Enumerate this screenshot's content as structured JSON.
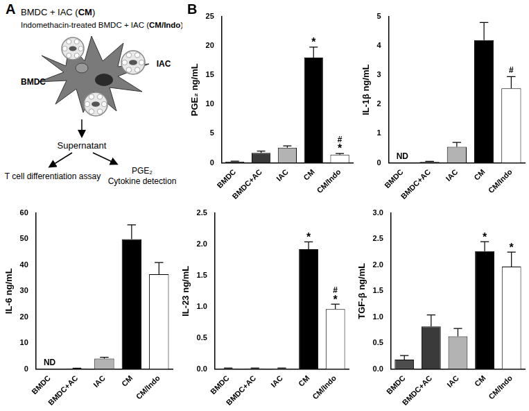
{
  "panel_labels": [
    "A",
    "B"
  ],
  "diagram": {
    "header_lines": [
      [
        {
          "text": "BMDC + IAC ("
        },
        {
          "text": "CM",
          "bold": true
        },
        {
          "text": ")"
        }
      ],
      [
        {
          "text": "Indomethacin-treated BMDC + IAC ("
        },
        {
          "text": "CM/Indo",
          "bold": true
        },
        {
          "text": ")"
        }
      ]
    ],
    "cell_label": "BMDC",
    "particle_label": "IAC",
    "product": "Supernatant",
    "left_output": [
      "T cell differentiation assay"
    ],
    "right_output": [
      "PGE₂",
      "Cytokine detection"
    ]
  },
  "chart_data": [
    {
      "type": "bar",
      "y_label": "PGE₂ ng/mL",
      "categories": [
        "BMDC",
        "BMDC+AC",
        "IAC",
        "CM",
        "CM/Indo"
      ],
      "values": [
        0.2,
        1.7,
        2.6,
        18,
        1.4
      ],
      "errors": [
        0.1,
        0.3,
        0.3,
        1.8,
        0.2
      ],
      "colors": [
        "#4d4d4d",
        "#3a3a3a",
        "#b3b3b3",
        "#000000",
        "#ffffff"
      ],
      "ylim": [
        0,
        25
      ],
      "yticks": [
        0,
        5,
        10,
        15,
        20,
        25
      ],
      "grid": false,
      "annotations": [
        {
          "category": "CM",
          "text": [
            "*"
          ]
        },
        {
          "category": "CM/Indo",
          "text": [
            "#",
            "*"
          ]
        }
      ]
    },
    {
      "type": "bar",
      "y_label": "IL-1β ng/mL",
      "categories": [
        "BMDC",
        "BMDC+AC",
        "IAC",
        "CM",
        "CM/Indo"
      ],
      "values": [
        null,
        0.03,
        0.55,
        4.2,
        2.55
      ],
      "errors": [
        null,
        0.02,
        0.15,
        0.6,
        0.4
      ],
      "colors": [
        "#4d4d4d",
        "#3a3a3a",
        "#b3b3b3",
        "#000000",
        "#ffffff"
      ],
      "ylim": [
        0,
        5
      ],
      "yticks": [
        0,
        1,
        2,
        3,
        4,
        5
      ],
      "grid": false,
      "annotations": [
        {
          "category": "BMDC",
          "text": [
            "ND"
          ]
        },
        {
          "category": "CM/Indo",
          "text": [
            "#"
          ]
        }
      ]
    },
    {
      "type": "bar",
      "y_label": "IL-6 ng/mL",
      "categories": [
        "BMDC",
        "BMDC+AC",
        "IAC",
        "CM",
        "CM/Indo"
      ],
      "values": [
        null,
        0.2,
        4,
        50,
        36.5
      ],
      "errors": [
        null,
        0.1,
        0.5,
        5.5,
        4.5
      ],
      "colors": [
        "#4d4d4d",
        "#3a3a3a",
        "#b3b3b3",
        "#000000",
        "#ffffff"
      ],
      "ylim": [
        0,
        60
      ],
      "yticks": [
        0,
        10,
        20,
        30,
        40,
        50,
        60
      ],
      "grid": false,
      "annotations": [
        {
          "category": "BMDC",
          "text": [
            "ND"
          ]
        }
      ]
    },
    {
      "type": "bar",
      "y_label": "IL-23 ng/mL",
      "categories": [
        "BMDC",
        "BMDC+AC",
        "IAC",
        "CM",
        "CM/Indo"
      ],
      "values": [
        0.01,
        0.01,
        0.01,
        1.92,
        0.96
      ],
      "errors": [
        0.005,
        0.005,
        0.005,
        0.12,
        0.08
      ],
      "colors": [
        "#4d4d4d",
        "#3a3a3a",
        "#b3b3b3",
        "#000000",
        "#ffffff"
      ],
      "ylim": [
        0,
        2.5
      ],
      "yticks": [
        {
          "value": 0,
          "label": "0.0"
        },
        {
          "value": 0.5,
          "label": "0.5"
        },
        {
          "value": 1,
          "label": "1.0"
        },
        {
          "value": 1.5,
          "label": "1.5"
        },
        {
          "value": 2,
          "label": "2.0"
        },
        {
          "value": 2.5,
          "label": "2.5"
        }
      ],
      "grid": false,
      "annotations": [
        {
          "category": "CM",
          "text": [
            "*"
          ]
        },
        {
          "category": "CM/Indo",
          "text": [
            "#",
            "*"
          ]
        }
      ]
    },
    {
      "type": "bar",
      "y_label": "TGF-β ng/mL",
      "categories": [
        "BMDC",
        "BMDC+AC",
        "IAC",
        "CM",
        "CM/Indo"
      ],
      "values": [
        0.18,
        0.82,
        0.63,
        2.27,
        1.97
      ],
      "errors": [
        0.08,
        0.22,
        0.15,
        0.18,
        0.28
      ],
      "colors": [
        "#4d4d4d",
        "#3a3a3a",
        "#b3b3b3",
        "#000000",
        "#ffffff"
      ],
      "ylim": [
        0,
        3
      ],
      "yticks": [
        {
          "value": 0,
          "label": "0.0"
        },
        {
          "value": 0.5,
          "label": "0.5"
        },
        {
          "value": 1,
          "label": "1.0"
        },
        {
          "value": 1.5,
          "label": "1.5"
        },
        {
          "value": 2,
          "label": "2.0"
        },
        {
          "value": 2.5,
          "label": "2.5"
        },
        {
          "value": 3,
          "label": "3.0"
        }
      ],
      "grid": false,
      "annotations": [
        {
          "category": "CM",
          "text": [
            "*"
          ]
        },
        {
          "category": "CM/Indo",
          "text": [
            "*"
          ]
        }
      ]
    }
  ]
}
